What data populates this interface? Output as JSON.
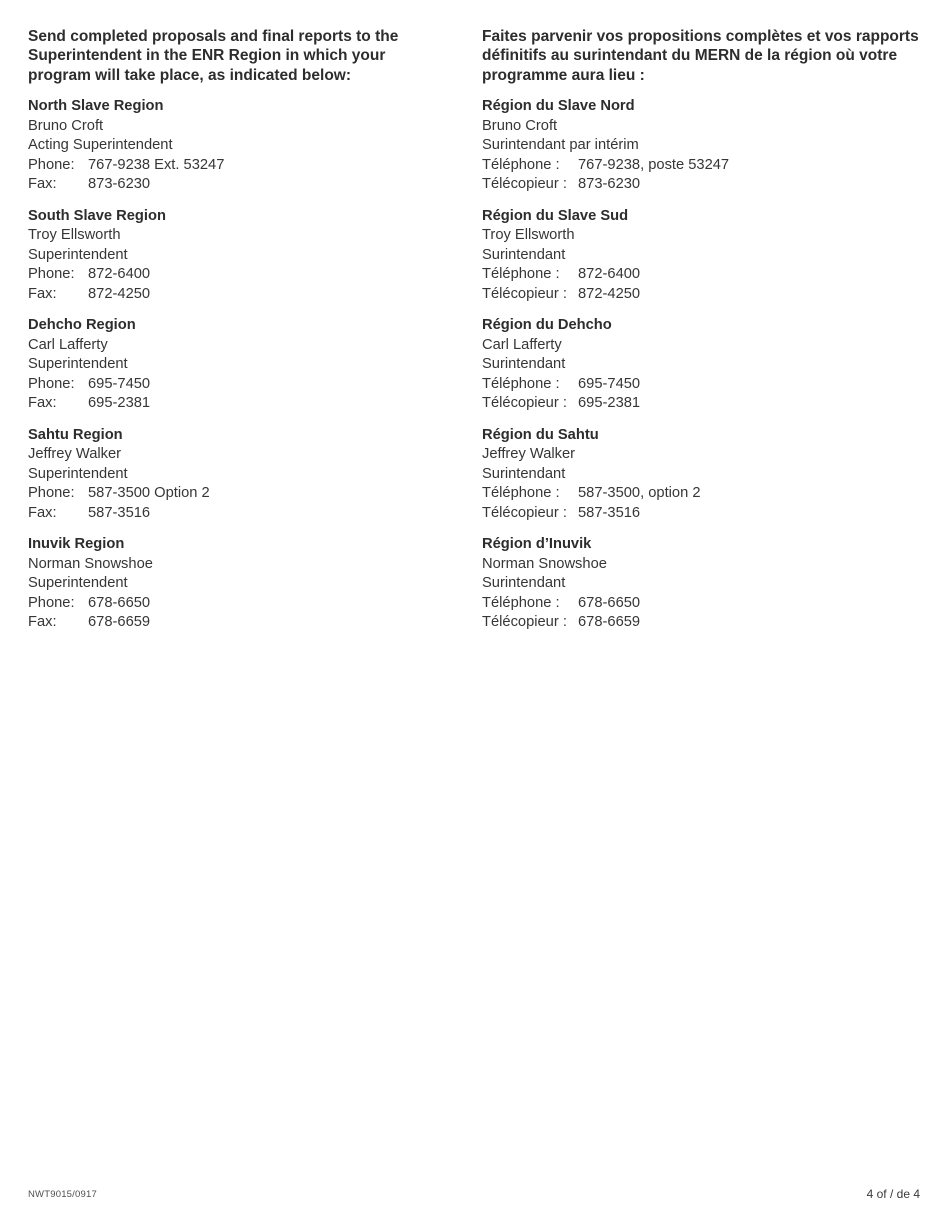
{
  "page": {
    "background": "#ffffff",
    "text_color": "#363636"
  },
  "intro": {
    "en_lines": [
      "Send completed proposals and final reports to the",
      "Superintendent in the ENR Region in which your",
      "program will take place, as indicated below:"
    ],
    "fr_lines": [
      "Faites parvenir vos propositions complètes et vos rapports",
      "définitifs au surintendant du MERN de la région où votre",
      "programme aura lieu :"
    ]
  },
  "columns": {
    "en": {
      "regions": [
        {
          "name": "North Slave Region",
          "person": "Bruno Croft",
          "title": "Acting Superintendent",
          "phone_label": "Phone:",
          "phone": "767-9238 Ext. 53247",
          "fax_label": "Fax:",
          "fax": "873-6230"
        },
        {
          "name": "South Slave Region",
          "person": "Troy Ellsworth",
          "title": "Superintendent",
          "phone_label": "Phone:",
          "phone": "872-6400",
          "fax_label": "Fax:",
          "fax": "872-4250"
        },
        {
          "name": "Dehcho Region",
          "person": "Carl Lafferty",
          "title": "Superintendent",
          "phone_label": "Phone:",
          "phone": "695-7450",
          "fax_label": "Fax:",
          "fax": "695-2381"
        },
        {
          "name": "Sahtu Region",
          "person": "Jeffrey Walker",
          "title": "Superintendent",
          "phone_label": "Phone:",
          "phone": "587-3500 Option 2",
          "fax_label": "Fax:",
          "fax": "587-3516"
        },
        {
          "name": "Inuvik Region",
          "person": "Norman Snowshoe",
          "title": "Superintendent",
          "phone_label": "Phone:",
          "phone": "678-6650",
          "fax_label": "Fax:",
          "fax": "678-6659"
        }
      ]
    },
    "fr": {
      "regions": [
        {
          "name": "Région du Slave Nord",
          "person": "Bruno Croft",
          "title": "Surintendant par intérim",
          "phone_label": "Téléphone :",
          "phone": "767-9238, poste 53247",
          "fax_label": "Télécopieur :",
          "fax": "873-6230"
        },
        {
          "name": "Région du Slave Sud",
          "person": "Troy Ellsworth",
          "title": "Surintendant",
          "phone_label": "Téléphone :",
          "phone": "872-6400",
          "fax_label": "Télécopieur :",
          "fax": "872-4250"
        },
        {
          "name": "Région du Dehcho",
          "person": "Carl Lafferty",
          "title": "Surintendant",
          "phone_label": "Téléphone :",
          "phone": "695-7450",
          "fax_label": "Télécopieur :",
          "fax": "695-2381"
        },
        {
          "name": "Région du Sahtu",
          "person": "Jeffrey Walker",
          "title": "Surintendant",
          "phone_label": "Téléphone :",
          "phone": "587-3500, option 2",
          "fax_label": "Télécopieur :",
          "fax": "587-3516"
        },
        {
          "name": "Région d’Inuvik",
          "person": "Norman Snowshoe",
          "title": "Surintendant",
          "phone_label": "Téléphone :",
          "phone": "678-6650",
          "fax_label": "Télécopieur :",
          "fax": "678-6659"
        }
      ]
    }
  },
  "footer": {
    "form_number": "NWT9015/0917",
    "page_indicator": "4 of / de 4"
  }
}
